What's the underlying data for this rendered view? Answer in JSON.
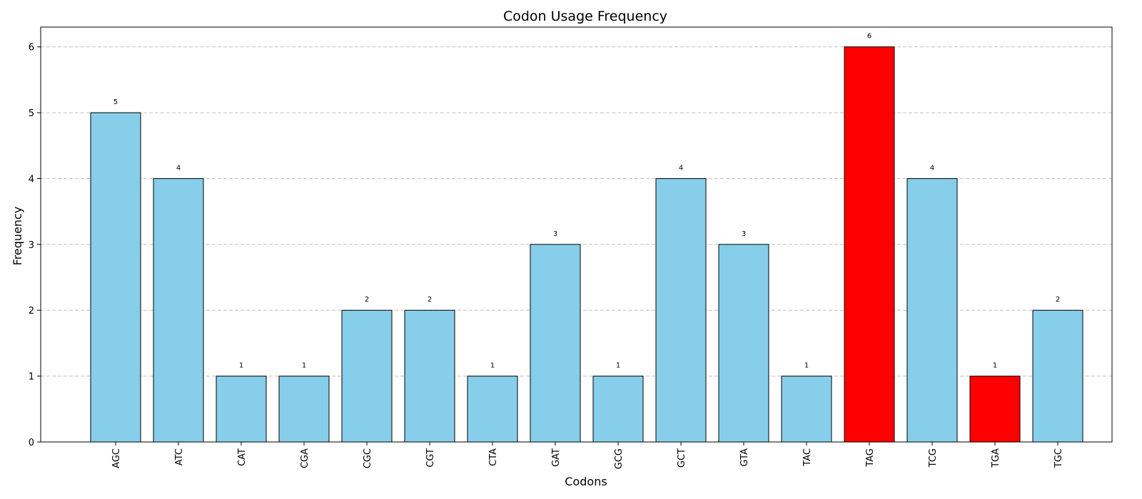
{
  "chart_data": {
    "type": "bar",
    "title": "Codon Usage Frequency",
    "xlabel": "Codons",
    "ylabel": "Frequency",
    "ylim": [
      0,
      6.3
    ],
    "yticks": [
      0,
      1,
      2,
      3,
      4,
      5,
      6
    ],
    "grid": "y, dashed",
    "categories": [
      "AGC",
      "ATC",
      "CAT",
      "CGA",
      "CGC",
      "CGT",
      "CTA",
      "GAT",
      "GCG",
      "GCT",
      "GTA",
      "TAC",
      "TAG",
      "TCG",
      "TGA",
      "TGC"
    ],
    "values": [
      5,
      4,
      1,
      1,
      2,
      2,
      1,
      3,
      1,
      4,
      3,
      1,
      6,
      4,
      1,
      2
    ],
    "data_labels": [
      "5",
      "4",
      "1",
      "1",
      "2",
      "2",
      "1",
      "3",
      "1",
      "4",
      "3",
      "1",
      "6",
      "4",
      "1",
      "2"
    ],
    "bar_colors": [
      "#87CEEB",
      "#87CEEB",
      "#87CEEB",
      "#87CEEB",
      "#87CEEB",
      "#87CEEB",
      "#87CEEB",
      "#87CEEB",
      "#87CEEB",
      "#87CEEB",
      "#87CEEB",
      "#87CEEB",
      "#FF0000",
      "#87CEEB",
      "#FF0000",
      "#87CEEB"
    ],
    "colors": {
      "default": "#87CEEB",
      "highlight": "#FF0000",
      "edge": "#000000",
      "grid": "#c0c0c0"
    }
  }
}
